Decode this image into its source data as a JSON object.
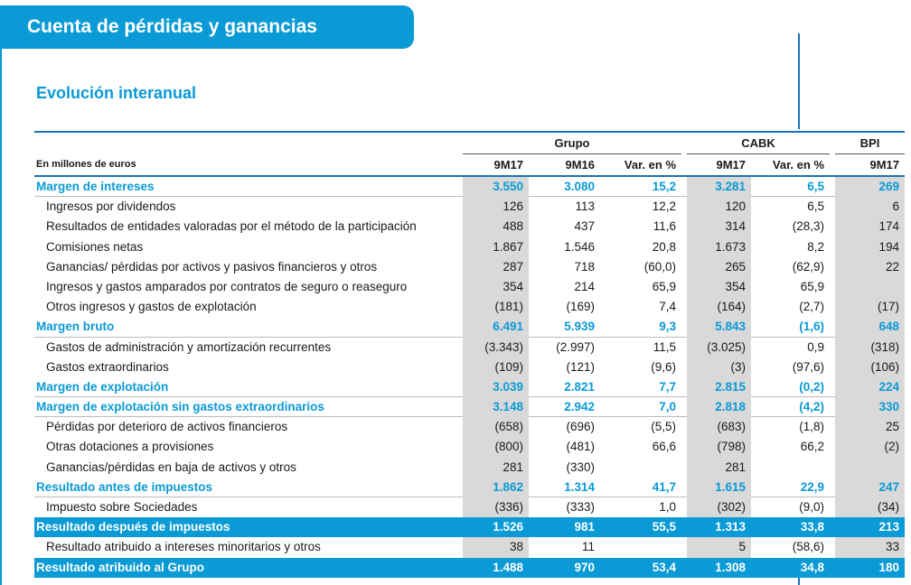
{
  "banner": {
    "title": "Cuenta de pérdidas y ganancias"
  },
  "subtitle": "Evolución interanual",
  "table": {
    "unit_label": "En millones de euros",
    "groups": [
      "Grupo",
      "CABK",
      "BPI"
    ],
    "columns": [
      "9M17",
      "9M16",
      "Var. en %",
      "9M17",
      "Var. en %",
      "9M17"
    ],
    "rows": [
      {
        "label": "Margen de intereses",
        "type": "sub",
        "values": [
          "3.550",
          "3.080",
          "15,2",
          "3.281",
          "6,5",
          "269"
        ]
      },
      {
        "label": "Ingresos por dividendos",
        "type": "indent",
        "values": [
          "126",
          "113",
          "12,2",
          "120",
          "6,5",
          "6"
        ]
      },
      {
        "label": "Resultados de entidades valoradas por el método de la participación",
        "type": "indent",
        "values": [
          "488",
          "437",
          "11,6",
          "314",
          "(28,3)",
          "174"
        ]
      },
      {
        "label": "Comisiones netas",
        "type": "indent",
        "values": [
          "1.867",
          "1.546",
          "20,8",
          "1.673",
          "8,2",
          "194"
        ]
      },
      {
        "label": "Ganancias/ pérdidas por activos y pasivos financieros y otros",
        "type": "indent",
        "values": [
          "287",
          "718",
          "(60,0)",
          "265",
          "(62,9)",
          "22"
        ]
      },
      {
        "label": "Ingresos y gastos amparados por contratos de seguro o reaseguro",
        "type": "indent",
        "values": [
          "354",
          "214",
          "65,9",
          "354",
          "65,9",
          ""
        ]
      },
      {
        "label": "Otros ingresos y gastos de explotación",
        "type": "indent",
        "values": [
          "(181)",
          "(169)",
          "7,4",
          "(164)",
          "(2,7)",
          "(17)"
        ]
      },
      {
        "label": "Margen bruto",
        "type": "sub",
        "values": [
          "6.491",
          "5.939",
          "9,3",
          "5.843",
          "(1,6)",
          "648"
        ]
      },
      {
        "label": "Gastos de administración y amortización recurrentes",
        "type": "indent",
        "values": [
          "(3.343)",
          "(2.997)",
          "11,5",
          "(3.025)",
          "0,9",
          "(318)"
        ]
      },
      {
        "label": "Gastos extraordinarios",
        "type": "indent",
        "values": [
          "(109)",
          "(121)",
          "(9,6)",
          "(3)",
          "(97,6)",
          "(106)"
        ]
      },
      {
        "label": "Margen de explotación",
        "type": "sub",
        "values": [
          "3.039",
          "2.821",
          "7,7",
          "2.815",
          "(0,2)",
          "224"
        ]
      },
      {
        "label": "Margen de explotación sin gastos extraordinarios",
        "type": "sub",
        "values": [
          "3.148",
          "2.942",
          "7,0",
          "2.818",
          "(4,2)",
          "330"
        ]
      },
      {
        "label": "Pérdidas por deterioro de activos financieros",
        "type": "indent",
        "values": [
          "(658)",
          "(696)",
          "(5,5)",
          "(683)",
          "(1,8)",
          "25"
        ]
      },
      {
        "label": "Otras dotaciones a provisiones",
        "type": "indent",
        "values": [
          "(800)",
          "(481)",
          "66,6",
          "(798)",
          "66,2",
          "(2)"
        ]
      },
      {
        "label": "Ganancias/pérdidas en baja de activos y otros",
        "type": "indent",
        "values": [
          "281",
          "(330)",
          "",
          "281",
          "",
          ""
        ]
      },
      {
        "label": "Resultado antes de impuestos",
        "type": "sub",
        "values": [
          "1.862",
          "1.314",
          "41,7",
          "1.615",
          "22,9",
          "247"
        ]
      },
      {
        "label": "Impuesto sobre Sociedades",
        "type": "indent",
        "values": [
          "(336)",
          "(333)",
          "1,0",
          "(302)",
          "(9,0)",
          "(34)"
        ]
      },
      {
        "label": "Resultado después de impuestos",
        "type": "hl",
        "values": [
          "1.526",
          "981",
          "55,5",
          "1.313",
          "33,8",
          "213"
        ]
      },
      {
        "label": "Resultado atribuido a intereses minoritarios y otros",
        "type": "indent",
        "values": [
          "38",
          "11",
          "",
          "5",
          "(58,6)",
          "33"
        ]
      },
      {
        "label": "Resultado atribuido al Grupo",
        "type": "hl",
        "values": [
          "1.488",
          "970",
          "53,4",
          "1.308",
          "34,8",
          "180"
        ]
      }
    ]
  },
  "colors": {
    "accent": "#0a9ad6",
    "rule": "#1a73b5",
    "shade": "#d9d9d9"
  }
}
